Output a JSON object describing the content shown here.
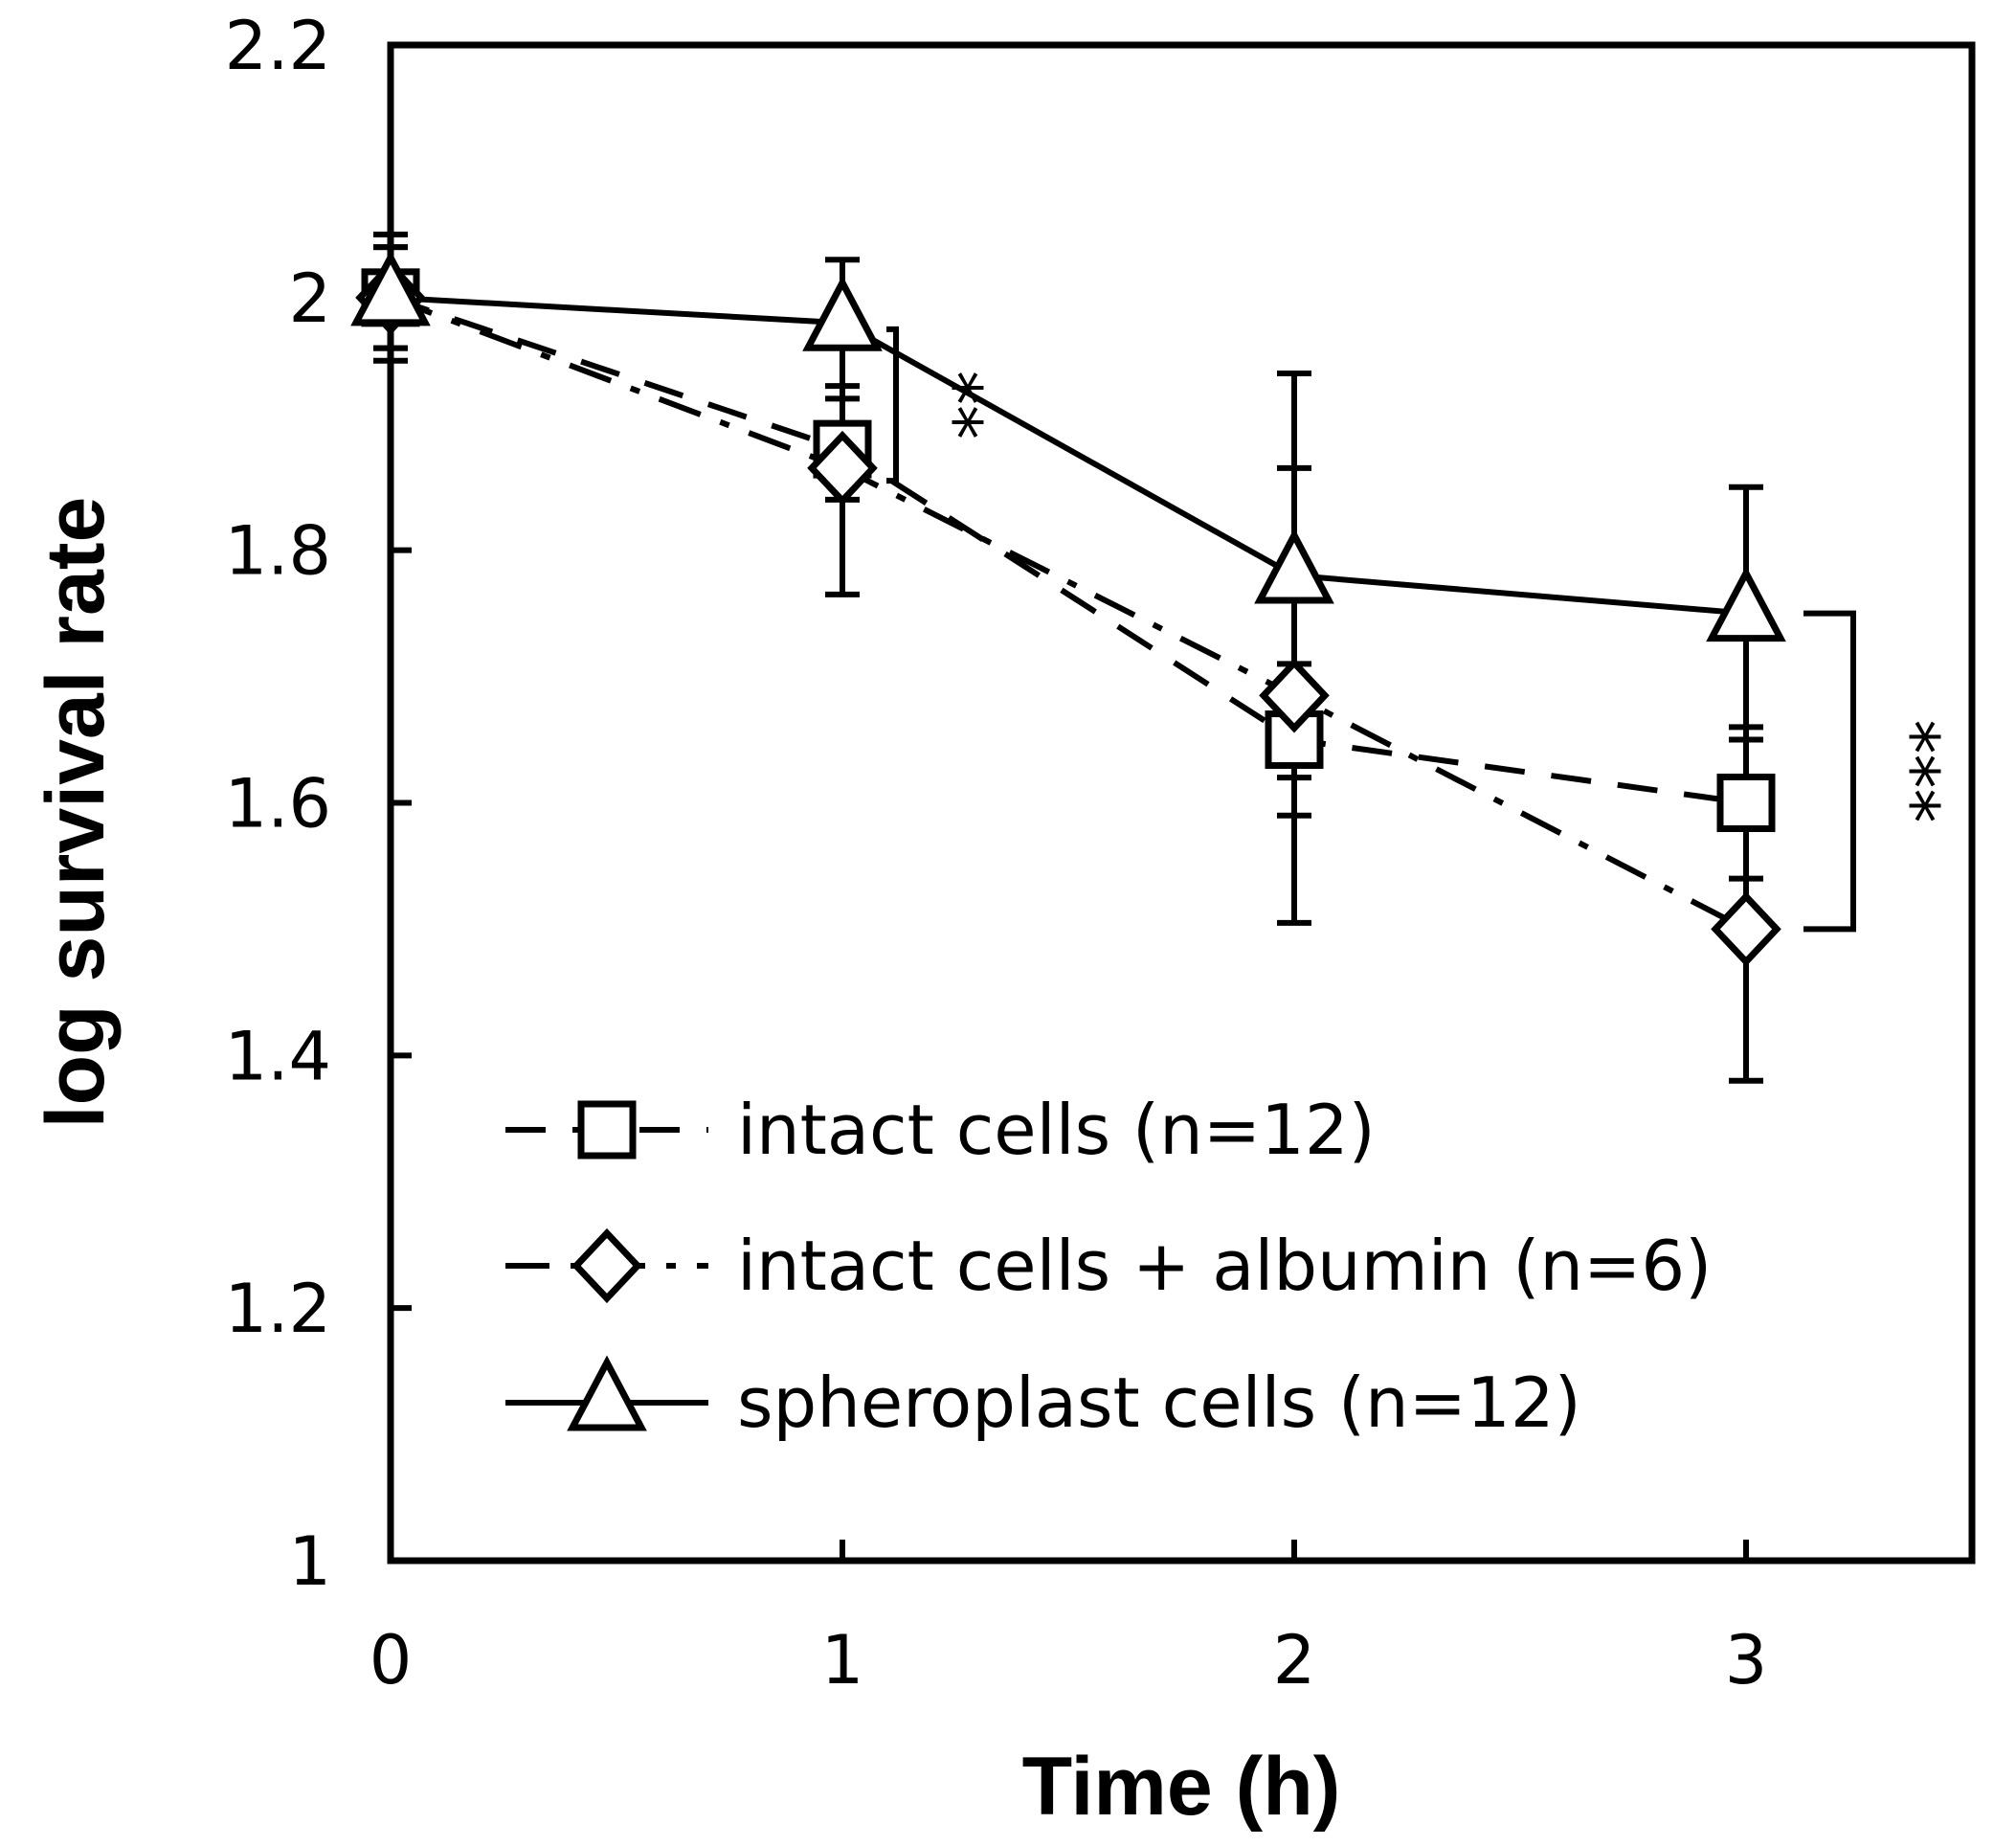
{
  "chart_data": {
    "type": "line",
    "title": "",
    "xlabel": "Time (h)",
    "ylabel": "log survival rate",
    "xlim": [
      0,
      3.5
    ],
    "ylim": [
      1,
      2.2
    ],
    "x": [
      0,
      1,
      2,
      3
    ],
    "x_tick_labels": [
      "0",
      "1",
      "2",
      "3"
    ],
    "y_ticks": [
      1,
      1.2,
      1.4,
      1.6,
      1.8,
      2,
      2.2
    ],
    "y_tick_labels": [
      "1",
      "1.2",
      "1.4",
      "1.6",
      "1.8",
      "2",
      "2.2"
    ],
    "grid": false,
    "legend_position": "bottom-left",
    "series": [
      {
        "name": "intact cells (n=12)",
        "marker": "square",
        "line_style": "dashed",
        "values": [
          2.0,
          1.88,
          1.65,
          1.6
        ],
        "error": [
          0.05,
          0.04,
          0.06,
          0.06
        ]
      },
      {
        "name": "intact cells + albumin (n=6)",
        "marker": "diamond",
        "line_style": "dash-dot",
        "values": [
          2.0,
          1.865,
          1.685,
          1.5
        ],
        "error": [
          0.04,
          0.1,
          0.18,
          0.12
        ]
      },
      {
        "name": "spheroplast cells (n=12)",
        "marker": "triangle",
        "line_style": "solid",
        "values": [
          2.0,
          1.98,
          1.78,
          1.75
        ],
        "error": [
          0.04,
          0.05,
          0.16,
          0.1
        ]
      }
    ],
    "annotations": [
      {
        "text": "**",
        "x": 1,
        "y_from": 1.855,
        "y_to": 1.975
      },
      {
        "text": "***",
        "x": 3,
        "y_from": 1.5,
        "y_to": 1.75
      }
    ]
  }
}
